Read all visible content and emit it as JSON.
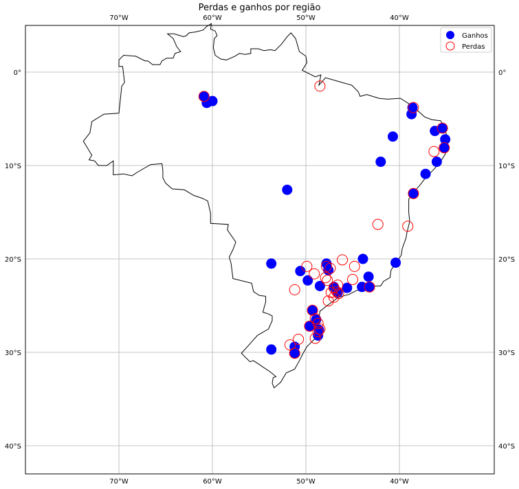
{
  "figure": {
    "title": "Perdas e ganhos por região"
  },
  "map": {
    "extent": {
      "lon_min": -80,
      "lon_max": -30,
      "lat_min": -43,
      "lat_max": 5
    },
    "gridlines": true,
    "x_ticks": [
      {
        "lon": -70,
        "label": "70°W"
      },
      {
        "lon": -60,
        "label": "60°W"
      },
      {
        "lon": -50,
        "label": "50°W"
      },
      {
        "lon": -40,
        "label": "40°W"
      }
    ],
    "y_ticks": [
      {
        "lat": 0,
        "label": "0°"
      },
      {
        "lat": -10,
        "label": "10°S"
      },
      {
        "lat": -20,
        "label": "20°S"
      },
      {
        "lat": -30,
        "label": "30°S"
      },
      {
        "lat": -40,
        "label": "40°S"
      }
    ],
    "legend": {
      "placement": "top-right",
      "items": [
        {
          "label": "Ganhos",
          "style": "filled",
          "color": "#0000ff"
        },
        {
          "label": "Perdas",
          "style": "hollow",
          "color": "#ff0000"
        }
      ]
    },
    "colors": {
      "outline": "#000000",
      "grid": "#b0b0b0",
      "gain": "#0000ff",
      "loss": "#ff0000"
    }
  },
  "chart_data": {
    "type": "scatter",
    "title": "Perdas e ganhos por região",
    "xlabel": "",
    "ylabel": "",
    "xlim": [
      -80,
      -30
    ],
    "ylim": [
      -43,
      5
    ],
    "grid": true,
    "legend_placement": "top-right",
    "series": [
      {
        "name": "Ganhos",
        "marker": "filled-circle",
        "color": "#0000ff",
        "points": [
          [
            -60.9,
            -2.6
          ],
          [
            -60.6,
            -3.3
          ],
          [
            -60.0,
            -3.1
          ],
          [
            -38.6,
            -3.8
          ],
          [
            -38.7,
            -4.5
          ],
          [
            -40.7,
            -6.9
          ],
          [
            -36.2,
            -6.3
          ],
          [
            -35.4,
            -6.0
          ],
          [
            -35.1,
            -7.2
          ],
          [
            -35.2,
            -8.1
          ],
          [
            -42.0,
            -9.6
          ],
          [
            -36.0,
            -9.6
          ],
          [
            -37.2,
            -10.9
          ],
          [
            -38.5,
            -13.0
          ],
          [
            -52.0,
            -12.6
          ],
          [
            -53.7,
            -20.5
          ],
          [
            -40.4,
            -20.4
          ],
          [
            -43.9,
            -20.0
          ],
          [
            -47.8,
            -20.5
          ],
          [
            -47.6,
            -21.2
          ],
          [
            -50.6,
            -21.3
          ],
          [
            -49.8,
            -22.3
          ],
          [
            -43.3,
            -21.9
          ],
          [
            -48.5,
            -22.9
          ],
          [
            -47.0,
            -23.0
          ],
          [
            -45.6,
            -23.1
          ],
          [
            -44.0,
            -23.0
          ],
          [
            -43.2,
            -23.0
          ],
          [
            -46.6,
            -23.6
          ],
          [
            -49.3,
            -25.5
          ],
          [
            -48.9,
            -26.5
          ],
          [
            -49.6,
            -27.2
          ],
          [
            -48.6,
            -27.6
          ],
          [
            -48.7,
            -28.2
          ],
          [
            -49.1,
            -27.0
          ],
          [
            -51.2,
            -29.4
          ],
          [
            -51.2,
            -30.1
          ],
          [
            -53.7,
            -29.7
          ]
        ]
      },
      {
        "name": "Perdas",
        "marker": "hollow-circle",
        "color": "#ff0000",
        "points": [
          [
            -60.9,
            -2.6
          ],
          [
            -48.5,
            -1.5
          ],
          [
            -38.5,
            -3.8
          ],
          [
            -35.4,
            -6.0
          ],
          [
            -35.2,
            -8.1
          ],
          [
            -36.3,
            -8.5
          ],
          [
            -38.5,
            -13.0
          ],
          [
            -42.3,
            -16.3
          ],
          [
            -39.1,
            -16.5
          ],
          [
            -49.9,
            -20.8
          ],
          [
            -47.8,
            -20.8
          ],
          [
            -47.4,
            -21.0
          ],
          [
            -46.1,
            -20.1
          ],
          [
            -44.8,
            -20.8
          ],
          [
            -49.1,
            -21.6
          ],
          [
            -47.9,
            -22.0
          ],
          [
            -47.7,
            -22.3
          ],
          [
            -45.0,
            -22.2
          ],
          [
            -51.2,
            -23.3
          ],
          [
            -47.0,
            -23.1
          ],
          [
            -46.6,
            -22.8
          ],
          [
            -47.3,
            -23.6
          ],
          [
            -46.7,
            -23.5
          ],
          [
            -46.5,
            -23.7
          ],
          [
            -47.0,
            -24.1
          ],
          [
            -47.6,
            -24.5
          ],
          [
            -43.2,
            -23.0
          ],
          [
            -49.3,
            -25.5
          ],
          [
            -49.0,
            -26.4
          ],
          [
            -48.7,
            -26.9
          ],
          [
            -49.6,
            -27.2
          ],
          [
            -48.5,
            -27.5
          ],
          [
            -48.7,
            -27.8
          ],
          [
            -49.0,
            -28.5
          ],
          [
            -50.8,
            -28.6
          ],
          [
            -51.7,
            -29.2
          ],
          [
            -51.2,
            -30.1
          ]
        ]
      }
    ]
  }
}
